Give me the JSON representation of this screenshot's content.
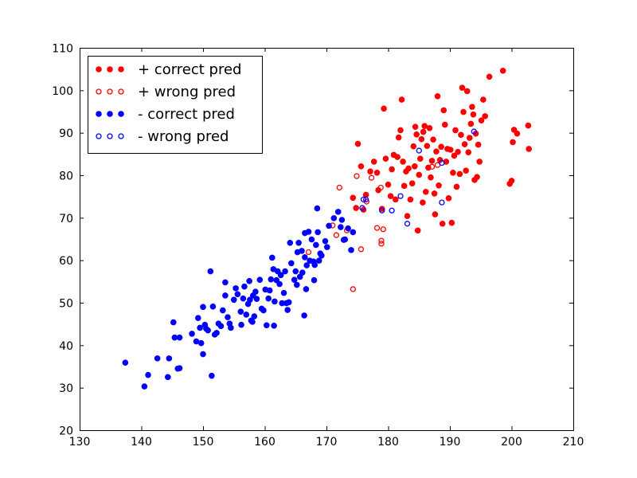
{
  "chart_data": {
    "type": "scatter",
    "title": "",
    "xlabel": "",
    "ylabel": "",
    "xlim": [
      130,
      210
    ],
    "ylim": [
      20,
      110
    ],
    "xticks": [
      130,
      140,
      150,
      160,
      170,
      180,
      190,
      200,
      210
    ],
    "yticks": [
      20,
      30,
      40,
      50,
      60,
      70,
      80,
      90,
      100,
      110
    ],
    "grid": false,
    "legend_position": "top-left",
    "series": [
      {
        "name": "+ correct pred",
        "color": "#ff0000",
        "marker": "filled-circle",
        "points": [
          [
            174.3,
            74.7
          ],
          [
            174.8,
            72.3
          ],
          [
            175.1,
            87.4
          ],
          [
            175.6,
            82.1
          ],
          [
            176.0,
            71.9
          ],
          [
            176.4,
            75.4
          ],
          [
            177.1,
            80.9
          ],
          [
            177.7,
            83.2
          ],
          [
            178.2,
            80.6
          ],
          [
            178.4,
            76.5
          ],
          [
            179.0,
            72.1
          ],
          [
            179.3,
            95.7
          ],
          [
            179.6,
            83.9
          ],
          [
            180.0,
            77.8
          ],
          [
            180.4,
            75.1
          ],
          [
            180.6,
            81.4
          ],
          [
            180.9,
            84.8
          ],
          [
            181.2,
            74.3
          ],
          [
            181.5,
            84.3
          ],
          [
            181.7,
            88.9
          ],
          [
            182.0,
            90.6
          ],
          [
            182.2,
            97.8
          ],
          [
            182.4,
            83.2
          ],
          [
            182.6,
            77.5
          ],
          [
            182.9,
            80.9
          ],
          [
            183.1,
            70.4
          ],
          [
            183.3,
            81.6
          ],
          [
            183.6,
            74.3
          ],
          [
            183.9,
            78.1
          ],
          [
            184.1,
            86.8
          ],
          [
            184.3,
            82.1
          ],
          [
            184.4,
            91.4
          ],
          [
            184.6,
            89.6
          ],
          [
            184.8,
            67.0
          ],
          [
            185.0,
            80.1
          ],
          [
            185.2,
            83.9
          ],
          [
            185.4,
            88.5
          ],
          [
            185.6,
            73.6
          ],
          [
            185.7,
            90.2
          ],
          [
            185.9,
            91.6
          ],
          [
            186.1,
            76.1
          ],
          [
            186.3,
            86.9
          ],
          [
            186.5,
            81.8
          ],
          [
            186.7,
            91.1
          ],
          [
            186.9,
            79.5
          ],
          [
            187.1,
            83.4
          ],
          [
            187.3,
            88.4
          ],
          [
            187.5,
            75.7
          ],
          [
            187.6,
            70.8
          ],
          [
            187.8,
            85.6
          ],
          [
            188.0,
            98.6
          ],
          [
            188.2,
            77.6
          ],
          [
            188.4,
            83.6
          ],
          [
            188.6,
            86.7
          ],
          [
            188.8,
            68.6
          ],
          [
            189.0,
            95.3
          ],
          [
            189.2,
            91.9
          ],
          [
            189.4,
            83.2
          ],
          [
            189.6,
            86.2
          ],
          [
            189.8,
            74.6
          ],
          [
            190.1,
            86.0
          ],
          [
            190.3,
            68.8
          ],
          [
            190.5,
            80.6
          ],
          [
            190.7,
            84.6
          ],
          [
            190.9,
            90.6
          ],
          [
            191.1,
            77.3
          ],
          [
            191.3,
            85.5
          ],
          [
            191.6,
            80.3
          ],
          [
            191.8,
            89.5
          ],
          [
            192.0,
            100.6
          ],
          [
            192.2,
            94.9
          ],
          [
            192.4,
            87.3
          ],
          [
            192.6,
            81.1
          ],
          [
            192.8,
            99.8
          ],
          [
            193.0,
            85.4
          ],
          [
            193.2,
            88.8
          ],
          [
            193.4,
            92.1
          ],
          [
            193.6,
            96.1
          ],
          [
            193.8,
            94.3
          ],
          [
            194.0,
            78.9
          ],
          [
            194.2,
            89.8
          ],
          [
            194.4,
            79.6
          ],
          [
            194.6,
            87.2
          ],
          [
            194.8,
            83.2
          ],
          [
            195.1,
            92.9
          ],
          [
            195.4,
            97.8
          ],
          [
            195.7,
            93.9
          ],
          [
            196.4,
            103.2
          ],
          [
            198.6,
            104.6
          ],
          [
            199.7,
            78.0
          ],
          [
            200.0,
            78.7
          ],
          [
            200.2,
            87.8
          ],
          [
            200.4,
            90.7
          ],
          [
            200.9,
            89.8
          ],
          [
            202.7,
            91.7
          ],
          [
            202.8,
            86.2
          ]
        ]
      },
      {
        "name": "+ wrong pred",
        "color": "#ff0000",
        "marker": "open-circle",
        "points": [
          [
            167.1,
            61.9
          ],
          [
            171.0,
            68.2
          ],
          [
            171.6,
            65.9
          ],
          [
            172.1,
            77.1
          ],
          [
            173.3,
            67.0
          ],
          [
            174.3,
            53.2
          ],
          [
            174.9,
            79.8
          ],
          [
            175.6,
            62.6
          ],
          [
            176.5,
            73.8
          ],
          [
            177.3,
            79.4
          ],
          [
            178.2,
            67.6
          ],
          [
            178.8,
            77.1
          ],
          [
            178.9,
            63.9
          ],
          [
            178.9,
            64.6
          ],
          [
            179.2,
            67.3
          ],
          [
            187.1,
            82.0
          ],
          [
            188.0,
            82.4
          ]
        ]
      },
      {
        "name": "- correct pred",
        "color": "#0000ff",
        "marker": "filled-circle",
        "points": [
          [
            137.4,
            35.9
          ],
          [
            140.5,
            30.3
          ],
          [
            141.1,
            33.0
          ],
          [
            142.6,
            36.9
          ],
          [
            144.3,
            32.5
          ],
          [
            144.5,
            36.9
          ],
          [
            145.2,
            45.4
          ],
          [
            145.4,
            41.8
          ],
          [
            145.9,
            34.5
          ],
          [
            146.2,
            34.6
          ],
          [
            146.2,
            41.8
          ],
          [
            148.2,
            42.7
          ],
          [
            148.9,
            40.9
          ],
          [
            149.2,
            46.4
          ],
          [
            149.5,
            44.1
          ],
          [
            149.7,
            40.5
          ],
          [
            150.0,
            37.9
          ],
          [
            150.0,
            49.0
          ],
          [
            150.3,
            44.8
          ],
          [
            150.5,
            43.9
          ],
          [
            150.8,
            43.5
          ],
          [
            151.2,
            57.4
          ],
          [
            151.4,
            32.8
          ],
          [
            151.6,
            49.1
          ],
          [
            151.9,
            42.5
          ],
          [
            152.2,
            42.9
          ],
          [
            152.5,
            45.1
          ],
          [
            152.9,
            44.5
          ],
          [
            153.2,
            48.2
          ],
          [
            153.6,
            51.7
          ],
          [
            153.6,
            54.8
          ],
          [
            154.0,
            46.6
          ],
          [
            154.3,
            45.1
          ],
          [
            154.5,
            44.1
          ],
          [
            155.0,
            50.7
          ],
          [
            155.3,
            53.4
          ],
          [
            155.6,
            52.0
          ],
          [
            156.1,
            47.9
          ],
          [
            156.2,
            44.8
          ],
          [
            156.5,
            51.0
          ],
          [
            156.7,
            53.8
          ],
          [
            157.0,
            47.2
          ],
          [
            157.3,
            49.7
          ],
          [
            157.5,
            55.1
          ],
          [
            157.6,
            50.7
          ],
          [
            157.8,
            45.8
          ],
          [
            158.0,
            45.5
          ],
          [
            158.1,
            51.7
          ],
          [
            158.3,
            46.8
          ],
          [
            158.5,
            52.6
          ],
          [
            158.7,
            50.9
          ],
          [
            159.2,
            55.4
          ],
          [
            159.5,
            48.6
          ],
          [
            159.8,
            48.2
          ],
          [
            160.1,
            53.1
          ],
          [
            160.3,
            44.7
          ],
          [
            160.6,
            51.0
          ],
          [
            160.8,
            52.9
          ],
          [
            161.0,
            55.5
          ],
          [
            161.2,
            60.6
          ],
          [
            161.4,
            57.9
          ],
          [
            161.5,
            44.6
          ],
          [
            161.6,
            50.3
          ],
          [
            161.9,
            55.3
          ],
          [
            162.1,
            57.4
          ],
          [
            162.4,
            54.4
          ],
          [
            162.6,
            56.5
          ],
          [
            162.8,
            49.9
          ],
          [
            163.1,
            52.3
          ],
          [
            163.3,
            57.4
          ],
          [
            163.5,
            49.9
          ],
          [
            163.7,
            48.3
          ],
          [
            163.9,
            50.1
          ],
          [
            164.1,
            64.1
          ],
          [
            164.3,
            59.3
          ],
          [
            164.8,
            55.4
          ],
          [
            165.0,
            57.4
          ],
          [
            165.2,
            54.2
          ],
          [
            165.3,
            61.9
          ],
          [
            165.5,
            64.1
          ],
          [
            165.7,
            56.1
          ],
          [
            166.0,
            62.2
          ],
          [
            166.1,
            57.1
          ],
          [
            166.4,
            47.0
          ],
          [
            166.5,
            60.7
          ],
          [
            166.5,
            66.4
          ],
          [
            166.7,
            53.2
          ],
          [
            166.8,
            58.8
          ],
          [
            167.1,
            66.7
          ],
          [
            167.3,
            59.9
          ],
          [
            167.6,
            64.9
          ],
          [
            167.9,
            59.7
          ],
          [
            168.0,
            55.3
          ],
          [
            168.1,
            58.9
          ],
          [
            168.3,
            63.6
          ],
          [
            168.5,
            72.2
          ],
          [
            168.6,
            66.6
          ],
          [
            168.8,
            59.9
          ],
          [
            169.0,
            61.6
          ],
          [
            169.2,
            61.1
          ],
          [
            169.8,
            64.5
          ],
          [
            170.1,
            63.1
          ],
          [
            170.4,
            68.1
          ],
          [
            171.2,
            69.9
          ],
          [
            171.9,
            71.4
          ],
          [
            172.3,
            67.8
          ],
          [
            172.5,
            69.5
          ],
          [
            172.8,
            64.8
          ],
          [
            173.0,
            64.9
          ],
          [
            173.5,
            67.5
          ],
          [
            174.0,
            62.4
          ],
          [
            174.3,
            66.6
          ]
        ]
      },
      {
        "name": "- wrong pred",
        "color": "#0000ff",
        "marker": "open-circle",
        "points": [
          [
            175.8,
            72.3
          ],
          [
            176.0,
            74.3
          ],
          [
            176.4,
            74.3
          ],
          [
            179.0,
            71.7
          ],
          [
            180.6,
            71.7
          ],
          [
            182.0,
            75.1
          ],
          [
            183.1,
            68.6
          ],
          [
            185.0,
            85.8
          ],
          [
            188.7,
            82.9
          ],
          [
            188.7,
            73.6
          ],
          [
            193.9,
            90.3
          ]
        ]
      }
    ]
  }
}
